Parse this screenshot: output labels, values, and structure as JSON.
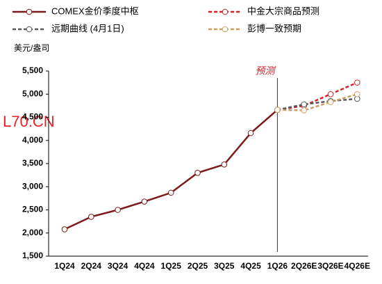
{
  "chart_data": {
    "type": "line",
    "y_axis_label": "美元/盎司",
    "annotation": "预测",
    "watermark": "L70.CN",
    "categories": [
      "1Q24",
      "2Q24",
      "3Q24",
      "4Q24",
      "1Q25",
      "2Q25",
      "3Q25",
      "4Q25",
      "1Q26",
      "2Q26E",
      "3Q26E",
      "4Q26E"
    ],
    "series": [
      {
        "name": "COMEX金价季度中枢",
        "color": "#7b1a1a",
        "dash": "solid",
        "values": [
          2080,
          2350,
          2500,
          2680,
          2870,
          3300,
          3480,
          4160,
          4660,
          null,
          null,
          null
        ]
      },
      {
        "name": "中金大宗商品预测",
        "color": "#d42027",
        "dash": "dashed",
        "values": [
          null,
          null,
          null,
          null,
          null,
          null,
          null,
          null,
          4660,
          4750,
          5000,
          5250
        ]
      },
      {
        "name": "远期曲线 (4月1日)",
        "color": "#595959",
        "dash": "dashed",
        "values": [
          null,
          null,
          null,
          null,
          null,
          null,
          null,
          null,
          4660,
          4780,
          4850,
          4900
        ]
      },
      {
        "name": "彭博一致预期",
        "color": "#c9a063",
        "dash": "dashed",
        "values": [
          null,
          null,
          null,
          null,
          null,
          null,
          null,
          null,
          4660,
          4650,
          4830,
          5000
        ]
      }
    ],
    "ylim": [
      1500,
      5500
    ],
    "yticks": [
      {
        "value": 1500,
        "label": "1,500"
      },
      {
        "value": 2000,
        "label": "2,000"
      },
      {
        "value": 2500,
        "label": "2,500"
      },
      {
        "value": 3000,
        "label": "3,000"
      },
      {
        "value": 3500,
        "label": "3,500"
      },
      {
        "value": 4000,
        "label": "4,000"
      },
      {
        "value": 4500,
        "label": "4,500"
      },
      {
        "value": 5000,
        "label": "5,000"
      },
      {
        "value": 5500,
        "label": "5,500"
      }
    ],
    "grid": false
  }
}
